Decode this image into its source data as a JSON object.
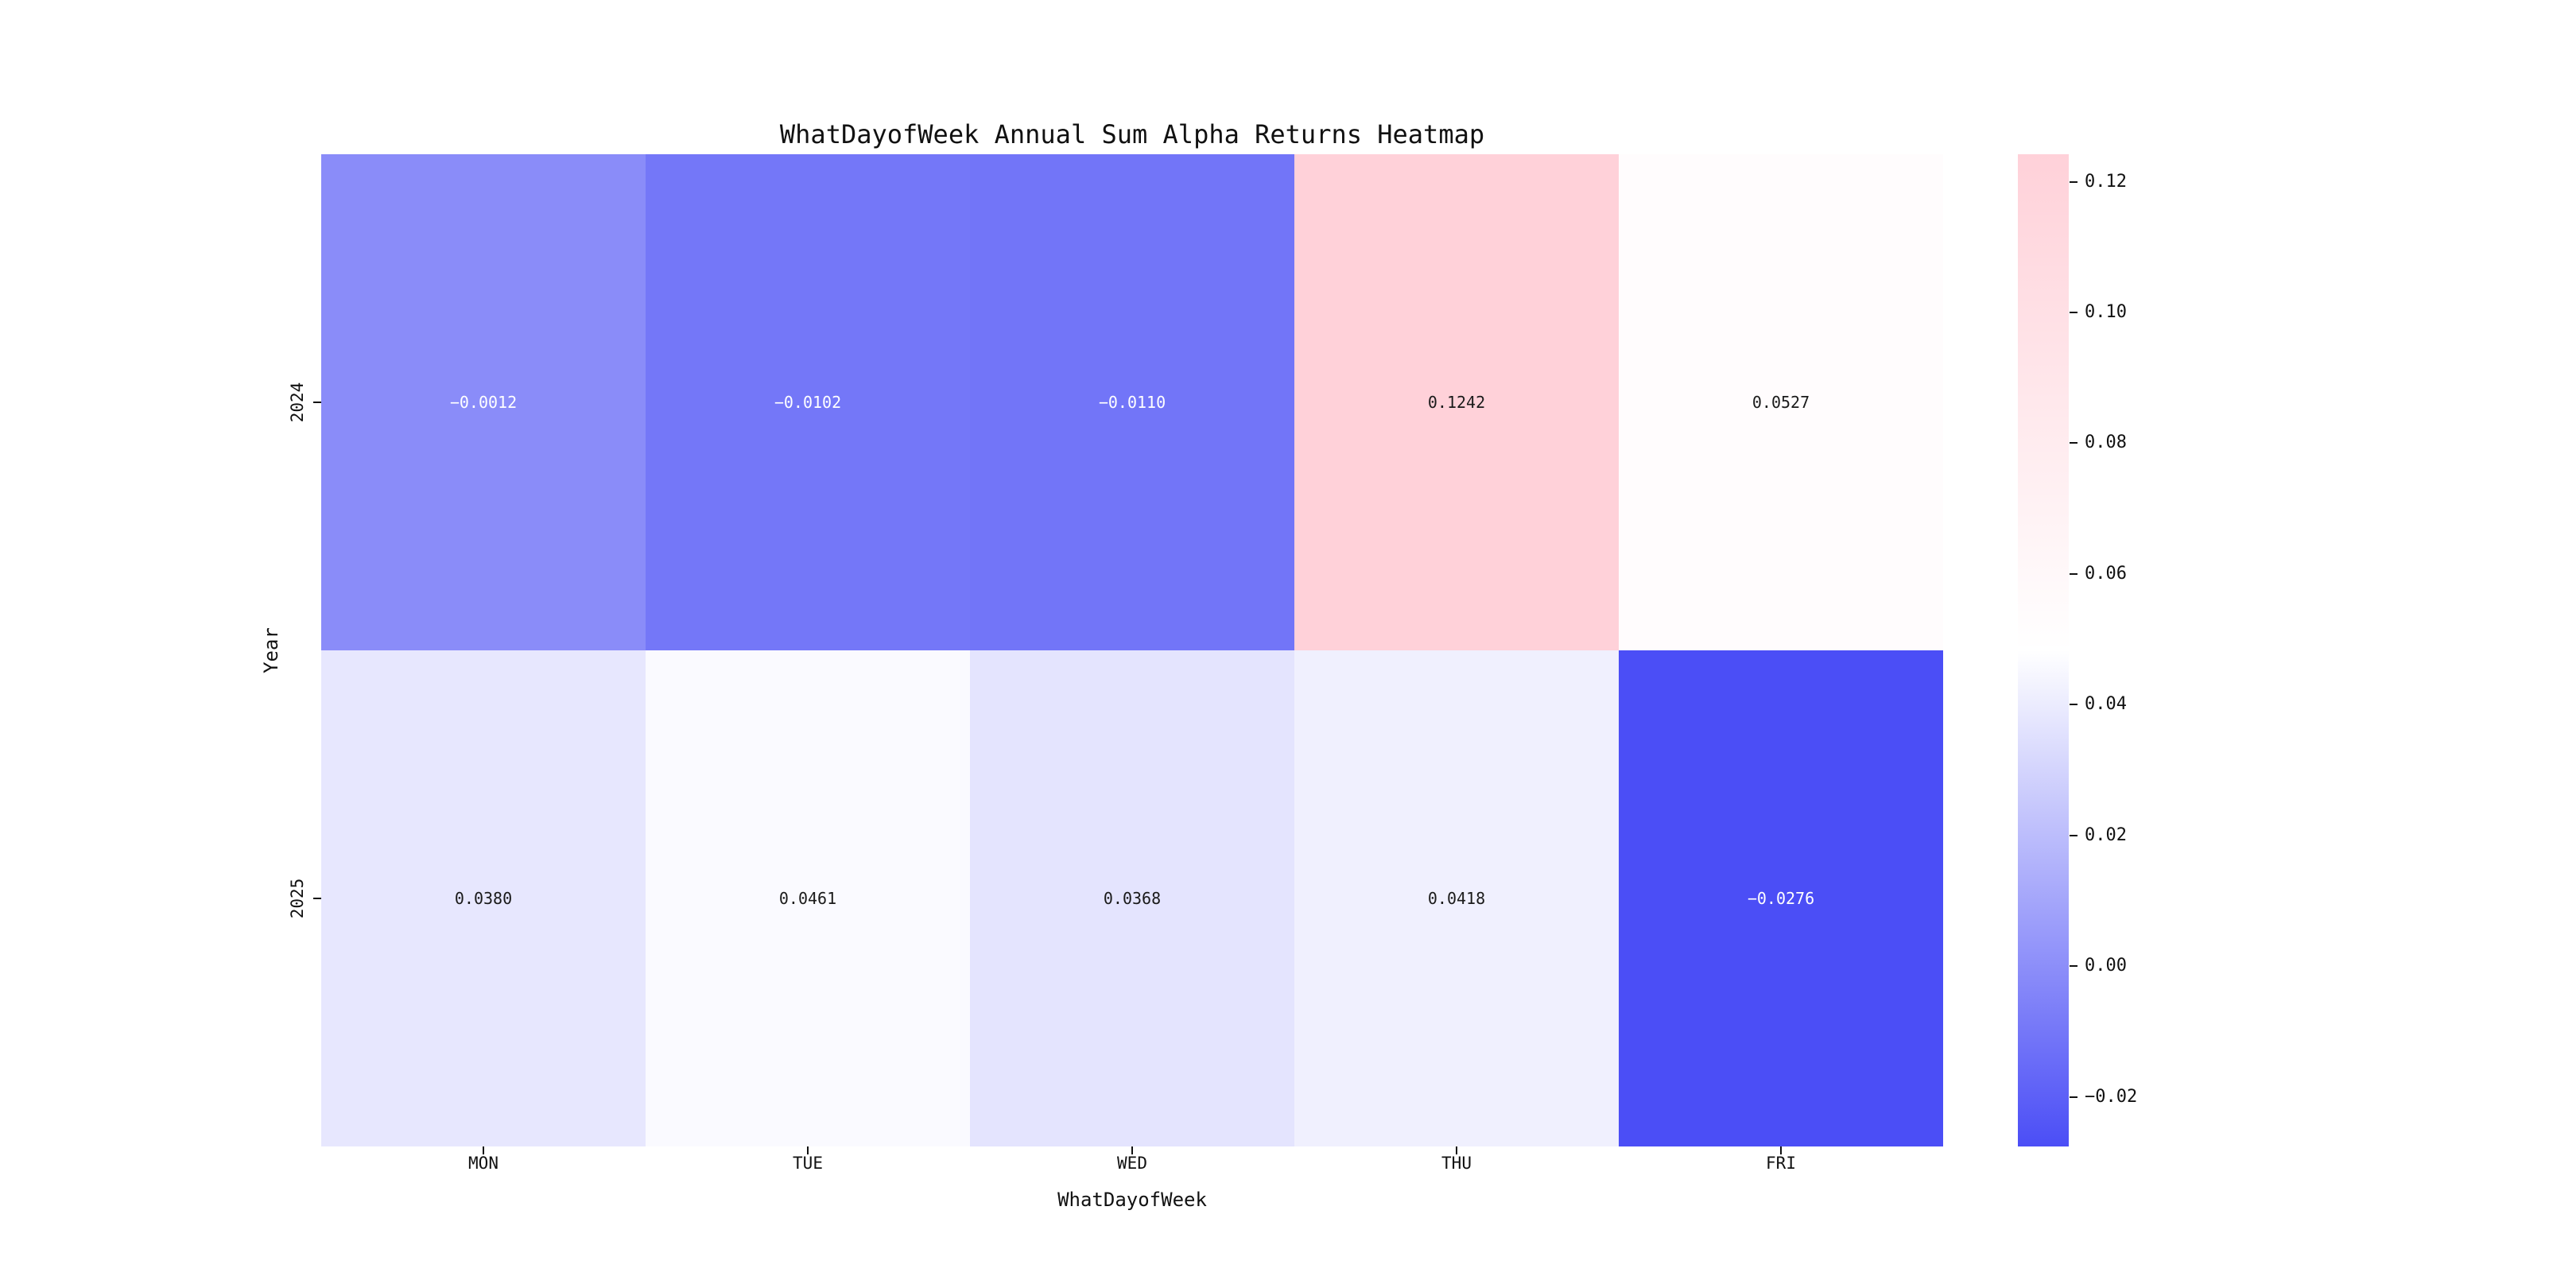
{
  "chart_data": {
    "type": "heatmap",
    "title": "WhatDayofWeek Annual Sum Alpha Returns Heatmap",
    "xlabel": "WhatDayofWeek",
    "ylabel": "Year",
    "categories_x": [
      "MON",
      "TUE",
      "WED",
      "THU",
      "FRI"
    ],
    "categories_y": [
      "2024",
      "2025"
    ],
    "values": [
      [
        -0.0012,
        -0.0102,
        -0.011,
        0.1242,
        0.0527
      ],
      [
        0.038,
        0.0461,
        0.0368,
        0.0418,
        -0.0276
      ]
    ],
    "vmin": -0.0276,
    "vmax": 0.1242,
    "annotation_decimals": 4,
    "colorbar_ticks": [
      0.12,
      0.1,
      0.08,
      0.06,
      0.04,
      0.02,
      0.0,
      -0.02
    ],
    "colorbar_tick_decimals": 2,
    "colors": {
      "low": "#4B4EF6",
      "mid": "#FFFFFF",
      "high": "#FFD1D9",
      "annotation_dark": "#1A1A1A",
      "annotation_light": "#FFFFFF",
      "axis_text": "#111111"
    },
    "legend_position": "right-colorbar",
    "grid": false
  }
}
